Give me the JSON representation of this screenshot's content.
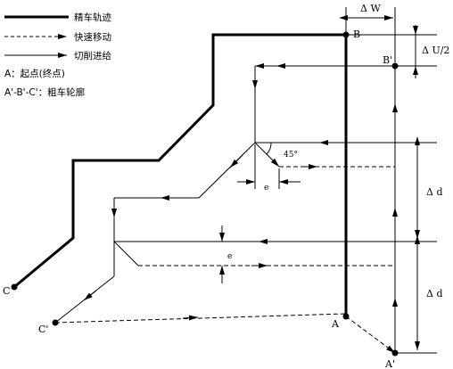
{
  "legend": {
    "finish_path": "精车轨迹",
    "rapid_move": "快速移动",
    "cutting_feed": "切削进给",
    "start_point": "A：起点(终点)",
    "rough_contour": "A'-B'-C'：粗车轮廓"
  },
  "points": {
    "A": "A",
    "A_prime": "A'",
    "B": "B",
    "B_prime": "B'",
    "C": "C",
    "C_prime": "C'"
  },
  "dimensions": {
    "delta_w": "Δ W",
    "delta_u_half": "Δ U/2",
    "delta_d_upper": "Δ d",
    "delta_d_lower": "Δ d",
    "e_horizontal": "e",
    "e_vertical": "e",
    "angle": "45°"
  }
}
